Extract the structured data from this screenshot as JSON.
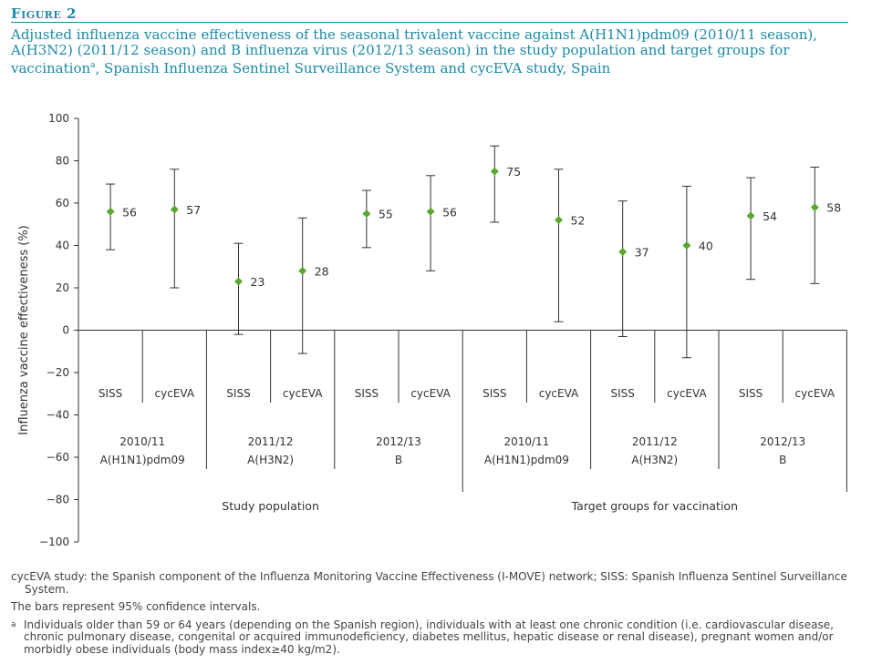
{
  "figure": {
    "label": "Figure 2",
    "title": "Adjusted influenza vaccine effectiveness of the seasonal trivalent vaccine against A(H1N1)pdm09 (2010/11 season), A(H3N2) (2011/12 season) and B influenza virus (2012/13 season) in the study population and target groups for vaccination",
    "title_sup": "a",
    "title_tail": ", Spanish Influenza Sentinel Surveillance System and cycEVA study, Spain"
  },
  "chart_data": {
    "type": "scatter",
    "ylabel": "Influenza vaccine effectiveness (%)",
    "ylim": [
      -100,
      100
    ],
    "yticks": [
      100,
      80,
      60,
      40,
      20,
      0,
      -20,
      -40,
      -60,
      -80,
      -100
    ],
    "marker_color": "#5aa832",
    "categories": [
      "SISS",
      "cycEVA",
      "SISS",
      "cycEVA",
      "SISS",
      "cycEVA",
      "SISS",
      "cycEVA",
      "SISS",
      "cycEVA",
      "SISS",
      "cycEVA"
    ],
    "points": [
      {
        "study": "SISS",
        "value": 56,
        "lower": 38,
        "upper": 69
      },
      {
        "study": "cycEVA",
        "value": 57,
        "lower": 20,
        "upper": 76
      },
      {
        "study": "SISS",
        "value": 23,
        "lower": -2,
        "upper": 41
      },
      {
        "study": "cycEVA",
        "value": 28,
        "lower": -11,
        "upper": 53
      },
      {
        "study": "SISS",
        "value": 55,
        "lower": 39,
        "upper": 66
      },
      {
        "study": "cycEVA",
        "value": 56,
        "lower": 28,
        "upper": 73
      },
      {
        "study": "SISS",
        "value": 75,
        "lower": 51,
        "upper": 87
      },
      {
        "study": "cycEVA",
        "value": 52,
        "lower": 4,
        "upper": 76
      },
      {
        "study": "SISS",
        "value": 37,
        "lower": -3,
        "upper": 61
      },
      {
        "study": "cycEVA",
        "value": 40,
        "lower": -13,
        "upper": 68
      },
      {
        "study": "SISS",
        "value": 54,
        "lower": 24,
        "upper": 72
      },
      {
        "study": "cycEVA",
        "value": 58,
        "lower": 22,
        "upper": 77
      }
    ],
    "season_groups": [
      {
        "season": "2010/11",
        "virus": "A(H1N1)pdm09"
      },
      {
        "season": "2011/12",
        "virus": "A(H3N2)"
      },
      {
        "season": "2012/13",
        "virus": "B"
      },
      {
        "season": "2010/11",
        "virus": "A(H1N1)pdm09"
      },
      {
        "season": "2011/12",
        "virus": "A(H3N2)"
      },
      {
        "season": "2012/13",
        "virus": "B"
      }
    ],
    "population_groups": [
      "Study population",
      "Target groups for vaccination"
    ]
  },
  "notes": {
    "abbreviations": "cycEVA study: the Spanish component of the Influenza Monitoring Vaccine Effectiveness (I-MOVE) network; SISS: Spanish Influenza Sentinel Surveillance System.",
    "bars": "The bars represent 95% confidence intervals.",
    "footnote_mark": "a",
    "footnote": "Individuals older than 59 or 64 years (depending on the Spanish region), individuals with at least one chronic condition (i.e. cardiovascular disease, chronic pulmonary disease, congenital or acquired immunodeficiency, diabetes mellitus, hepatic disease or renal disease), pregnant women and/or morbidly obese individuals (body mass index≥40 kg/m2)."
  }
}
